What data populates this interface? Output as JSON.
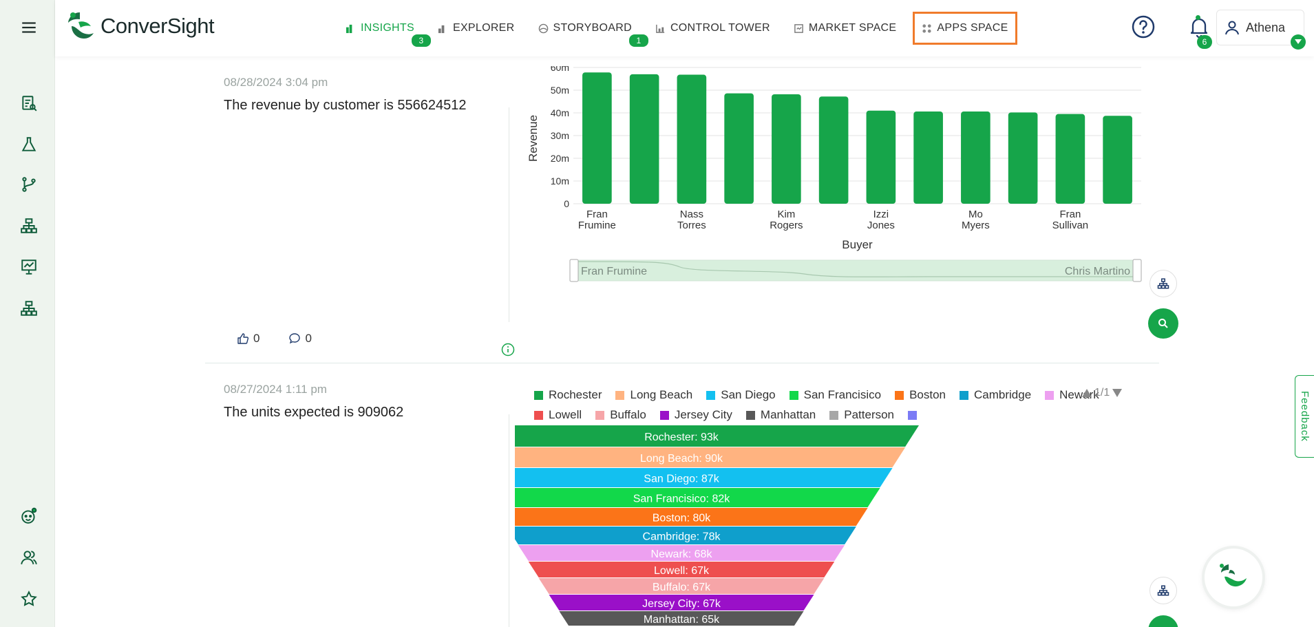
{
  "brand": {
    "name": "ConverSight",
    "primary_color": "#16a54a",
    "highlight_color": "#f07b2b"
  },
  "nav": {
    "items": [
      {
        "label": "INSIGHTS",
        "icon": "bar-chart-icon",
        "badge": "3",
        "active": true
      },
      {
        "label": "EXPLORER",
        "icon": "explorer-icon",
        "badge": "",
        "active": false
      },
      {
        "label": "STORYBOARD",
        "icon": "storyboard-icon",
        "badge": "1",
        "active": false
      },
      {
        "label": "CONTROL TOWER",
        "icon": "control-tower-icon",
        "badge": "",
        "active": false
      },
      {
        "label": "MARKET SPACE",
        "icon": "market-space-icon",
        "badge": "",
        "active": false
      },
      {
        "label": "APPS SPACE",
        "icon": "apps-grid-icon",
        "badge": "",
        "active": false,
        "highlighted": true
      }
    ]
  },
  "header": {
    "notifications_count": "6",
    "user_name": "Athena"
  },
  "sidebar": {
    "items": [
      "menu-icon",
      "report-icon",
      "flask-icon",
      "branch-icon",
      "hierarchy-icon",
      "presentation-icon",
      "org-chart-icon",
      "bot-face-icon",
      "users-icon",
      "star-icon"
    ]
  },
  "insights": [
    {
      "timestamp": "08/28/2024 3:04 pm",
      "text": "The revenue by customer is 556624512",
      "likes": "0",
      "comments": "0",
      "chart_data": {
        "type": "bar",
        "xlabel": "Buyer",
        "ylabel": "Revenue",
        "ylim": [
          0,
          60000000
        ],
        "y_ticks": [
          "0",
          "10m",
          "20m",
          "30m",
          "40m",
          "50m",
          "60m"
        ],
        "x_tick_labels": [
          [
            "Fran",
            "Frumine"
          ],
          [
            "Nass",
            "Torres"
          ],
          [
            "Kim",
            "Rogers"
          ],
          [
            "Izzi",
            "Jones"
          ],
          [
            "Mo",
            "Myers"
          ],
          [
            "Fran",
            "Sullivan"
          ]
        ],
        "values": [
          57800000,
          57000000,
          56800000,
          48600000,
          48200000,
          47200000,
          41000000,
          40600000,
          40600000,
          40200000,
          39500000,
          38700000
        ],
        "color": "#16a54a",
        "slider_start": "Fran Frumine",
        "slider_end": "Chris Martino"
      }
    },
    {
      "timestamp": "08/27/2024 1:11 pm",
      "text": "The units expected is 909062",
      "legend_pager": "1/1",
      "chart_data": {
        "type": "funnel",
        "legend": [
          {
            "name": "Rochester",
            "color": "#16a54a"
          },
          {
            "name": "Long Beach",
            "color": "#ffb380"
          },
          {
            "name": "San Diego",
            "color": "#13c0f0"
          },
          {
            "name": "San Francisico",
            "color": "#12d84a"
          },
          {
            "name": "Boston",
            "color": "#fb7418"
          },
          {
            "name": "Cambridge",
            "color": "#0f9fcc"
          },
          {
            "name": "Newark",
            "color": "#eda0f0"
          },
          {
            "name": "Lowell",
            "color": "#ee4f4f"
          },
          {
            "name": "Buffalo",
            "color": "#f6a5a8"
          },
          {
            "name": "Jersey City",
            "color": "#9a10c8"
          },
          {
            "name": "Manhattan",
            "color": "#585858"
          },
          {
            "name": "Patterson",
            "color": "#a7a7a7"
          },
          {
            "name": "",
            "color": "#7b7bf5"
          }
        ],
        "segments": [
          {
            "label": "Rochester: 93k",
            "value": 93,
            "color": "#16a54a"
          },
          {
            "label": "Long Beach: 90k",
            "value": 90,
            "color": "#ffb380"
          },
          {
            "label": "San Diego: 87k",
            "value": 87,
            "color": "#13c0f0"
          },
          {
            "label": "San Francisico: 82k",
            "value": 82,
            "color": "#12d84a"
          },
          {
            "label": "Boston: 80k",
            "value": 80,
            "color": "#fb7418"
          },
          {
            "label": "Cambridge: 78k",
            "value": 78,
            "color": "#0f9fcc"
          },
          {
            "label": "Newark: 68k",
            "value": 68,
            "color": "#eda0f0"
          },
          {
            "label": "Lowell: 67k",
            "value": 67,
            "color": "#ee4f4f"
          },
          {
            "label": "Buffalo: 67k",
            "value": 67,
            "color": "#f6a5a8"
          },
          {
            "label": "Jersey City: 67k",
            "value": 67,
            "color": "#9a10c8"
          },
          {
            "label": "Manhattan: 65k",
            "value": 65,
            "color": "#585858"
          }
        ]
      }
    }
  ],
  "feedback_label": "Feedback"
}
